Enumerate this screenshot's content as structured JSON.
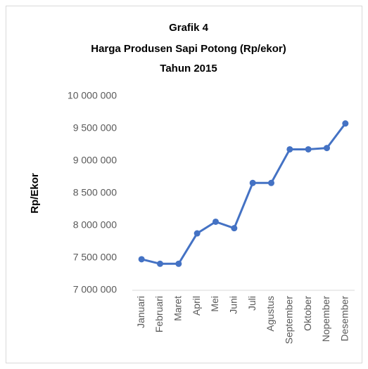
{
  "chart_data": {
    "type": "line",
    "title": [
      "Grafik  4",
      "Harga Produsen  Sapi Potong (Rp/ekor)",
      "Tahun 2015"
    ],
    "ylabel": "Rp/Ekor",
    "categories": [
      "Januari",
      "Februari",
      "Maret",
      "April",
      "Mei",
      "Juni",
      "Juli",
      "Agustus",
      "September",
      "Oktober",
      "Nopember",
      "Desember"
    ],
    "series": [
      {
        "color": "#4472c4",
        "values": [
          7480000,
          7410000,
          7410000,
          7880000,
          8060000,
          7960000,
          8660000,
          8660000,
          9180000,
          9180000,
          9200000,
          9580000
        ]
      }
    ],
    "ylim": [
      7000000,
      10000000
    ],
    "yticks": [
      {
        "value": 7000000,
        "label": "7 000 000"
      },
      {
        "value": 7500000,
        "label": "7 500 000"
      },
      {
        "value": 8000000,
        "label": "8 000 000"
      },
      {
        "value": 8500000,
        "label": "8 500 000"
      },
      {
        "value": 9000000,
        "label": "9 000 000"
      },
      {
        "value": 9500000,
        "label": "9 500 000"
      },
      {
        "value": 10000000,
        "label": "10 000 000"
      }
    ],
    "grid": false
  }
}
